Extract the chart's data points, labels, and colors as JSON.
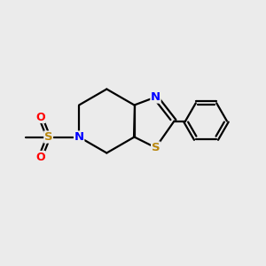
{
  "bg_color": "#ebebeb",
  "bond_color": "#000000",
  "line_width": 1.6,
  "atom_colors": {
    "S": "#b8860b",
    "N": "#0000ff",
    "O": "#ff0000",
    "C": "#000000"
  },
  "font_size": 9.5,
  "fig_size": [
    3.0,
    3.0
  ],
  "dpi": 100
}
